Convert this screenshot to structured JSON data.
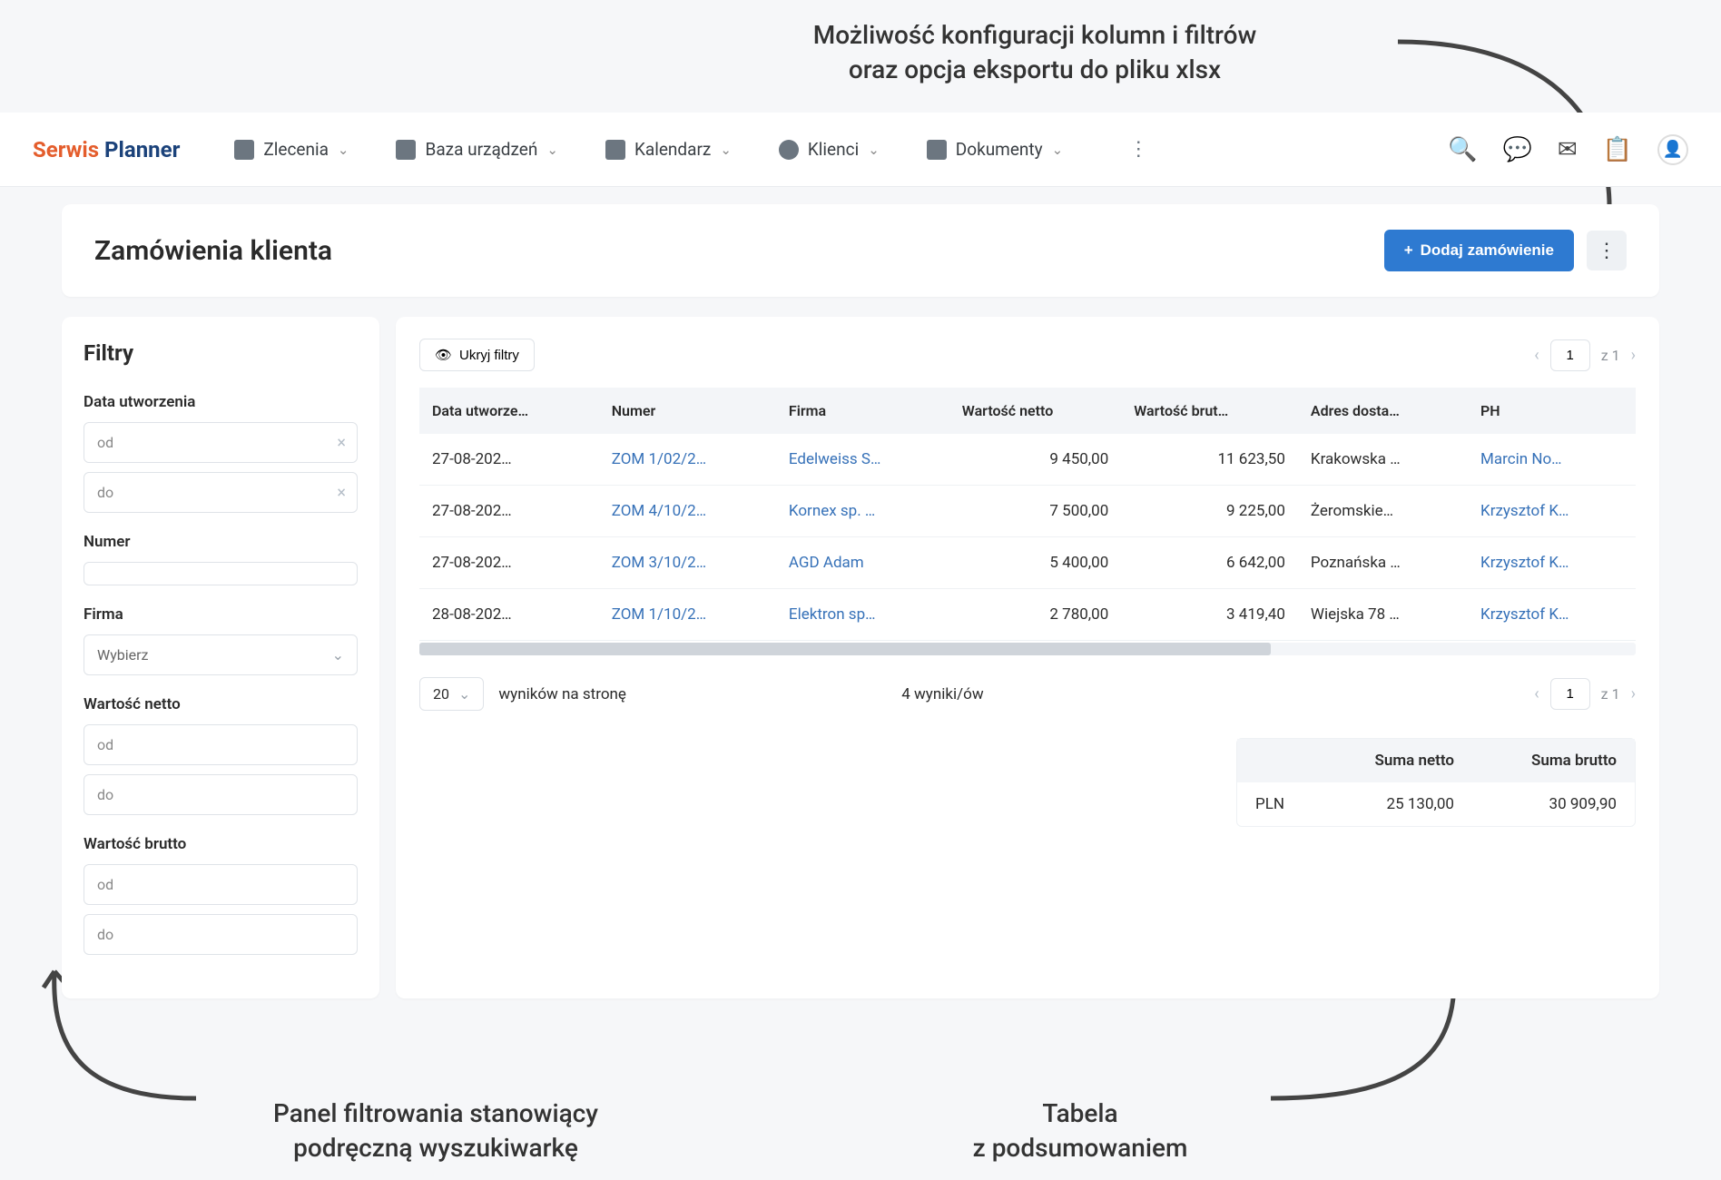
{
  "annotations": {
    "top": "Możliwość konfiguracji kolumn i filtrów\noraz opcja eksportu do pliku xlsx",
    "bottomLeft": "Panel filtrowania stanowiący\npodręczną wyszukiwarkę",
    "bottomRight": "Tabela\nz podsumowaniem"
  },
  "logo": {
    "part1": "Serwis",
    "part2": "Planner"
  },
  "nav": [
    {
      "label": "Zlecenia"
    },
    {
      "label": "Baza urządzeń"
    },
    {
      "label": "Kalendarz"
    },
    {
      "label": "Klienci"
    },
    {
      "label": "Dokumenty"
    }
  ],
  "page": {
    "title": "Zamówienia klienta",
    "addButton": "Dodaj zamówienie"
  },
  "filters": {
    "title": "Filtry",
    "groups": {
      "date": {
        "label": "Data utworzenia",
        "from": "od",
        "to": "do"
      },
      "number": {
        "label": "Numer"
      },
      "company": {
        "label": "Firma",
        "placeholder": "Wybierz"
      },
      "netto": {
        "label": "Wartość netto",
        "from": "od",
        "to": "do"
      },
      "brutto": {
        "label": "Wartość brutto",
        "from": "od",
        "to": "do"
      }
    }
  },
  "table": {
    "hideFilters": "Ukryj filtry",
    "pager": {
      "page": "1",
      "of": "z 1"
    },
    "columns": [
      "Data utworze…",
      "Numer",
      "Firma",
      "Wartość netto",
      "Wartość brut…",
      "Adres dosta…",
      "PH"
    ],
    "rows": [
      {
        "date": "27-08-202…",
        "number": "ZOM 1/02/2…",
        "company": "Edelweiss S…",
        "netto": "9 450,00",
        "brutto": "11 623,50",
        "address": "Krakowska …",
        "ph": "Marcin No…"
      },
      {
        "date": "27-08-202…",
        "number": "ZOM 4/10/2…",
        "company": "Kornex sp. …",
        "netto": "7 500,00",
        "brutto": "9 225,00",
        "address": "Żeromskie…",
        "ph": "Krzysztof K…"
      },
      {
        "date": "27-08-202…",
        "number": "ZOM 3/10/2…",
        "company": "AGD Adam",
        "netto": "5 400,00",
        "brutto": "6 642,00",
        "address": "Poznańska …",
        "ph": "Krzysztof K…"
      },
      {
        "date": "28-08-202…",
        "number": "ZOM 1/10/2…",
        "company": "Elektron sp…",
        "netto": "2 780,00",
        "brutto": "3 419,40",
        "address": "Wiejska 78 …",
        "ph": "Krzysztof K…"
      }
    ],
    "perPage": "20",
    "perPageLabel": "wyników na stronę",
    "resultsCount": "4 wyniki/ów"
  },
  "summary": {
    "headers": [
      "Suma netto",
      "Suma brutto"
    ],
    "currency": "PLN",
    "netto": "25 130,00",
    "brutto": "30 909,90"
  },
  "colors": {
    "accent": "#2e7ad1",
    "logoOrange": "#e45d2c",
    "logoBlue": "#1b427a",
    "link": "#3671b8",
    "background": "#f6f7f9"
  }
}
